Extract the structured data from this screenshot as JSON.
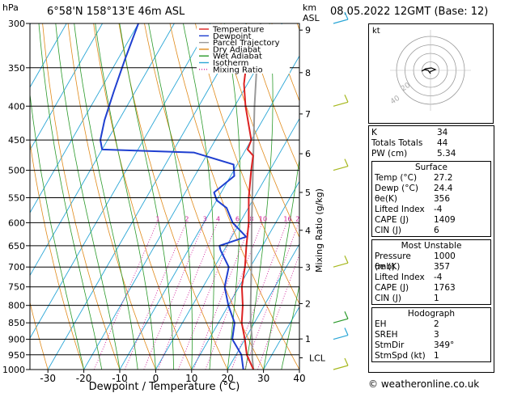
{
  "header": {
    "hpa_label": "hPa",
    "location": "6°58'N  158°13'E  46m  ASL",
    "km_label": "km",
    "asl_label": "ASL",
    "datetime": "08.05.2022  12GMT  (Base: 12)"
  },
  "chart_data": {
    "type": "line",
    "title": "6°58'N  158°13'E  46m  ASL",
    "xlabel": "Dewpoint / Temperature (°C)",
    "ylabel": "hPa",
    "right_axis_label": "Mixing Ratio (g/kg)",
    "xlim": [
      -35,
      40
    ],
    "ylim": [
      1000,
      300
    ],
    "pressure_levels": [
      300,
      350,
      400,
      450,
      500,
      550,
      600,
      650,
      700,
      750,
      800,
      850,
      900,
      950,
      1000
    ],
    "temp_ticks": [
      -30,
      -20,
      -10,
      0,
      10,
      20,
      30,
      40
    ],
    "km_ticks": [
      {
        "km": 1,
        "p": 899
      },
      {
        "km": 2,
        "p": 795
      },
      {
        "km": 3,
        "p": 701
      },
      {
        "km": 4,
        "p": 616
      },
      {
        "km": 5,
        "p": 540
      },
      {
        "km": 6,
        "p": 472
      },
      {
        "km": 7,
        "p": 411
      },
      {
        "km": 8,
        "p": 356
      },
      {
        "km": 9,
        "p": 307
      }
    ],
    "lcl": {
      "label": "LCL",
      "p": 960
    },
    "mixing_ratios": [
      1,
      2,
      3,
      4,
      6,
      8,
      10,
      16,
      20,
      25
    ],
    "legend": [
      {
        "name": "Temperature",
        "color": "#dd2222"
      },
      {
        "name": "Dewpoint",
        "color": "#1f3fd0"
      },
      {
        "name": "Parcel Trajectory",
        "color": "#999999"
      },
      {
        "name": "Dry Adiabat",
        "color": "#e08a1a"
      },
      {
        "name": "Wet Adiabat",
        "color": "#2a9a2a"
      },
      {
        "name": "Isotherm",
        "color": "#2aa6d6"
      },
      {
        "name": "Mixing Ratio",
        "color": "#d0209a"
      }
    ],
    "series": [
      {
        "name": "Temperature",
        "points": [
          [
            1000,
            27.2
          ],
          [
            950,
            23
          ],
          [
            900,
            20
          ],
          [
            850,
            16.5
          ],
          [
            800,
            14
          ],
          [
            750,
            10.8
          ],
          [
            700,
            8.5
          ],
          [
            650,
            5.5
          ],
          [
            600,
            2.5
          ],
          [
            550,
            -1.5
          ],
          [
            500,
            -5.2
          ],
          [
            475,
            -7
          ],
          [
            465,
            -9.5
          ],
          [
            450,
            -10
          ],
          [
            400,
            -17
          ],
          [
            370,
            -21
          ],
          [
            350,
            -23
          ]
        ]
      },
      {
        "name": "Dewpoint",
        "points": [
          [
            1000,
            24.4
          ],
          [
            950,
            21.5
          ],
          [
            900,
            16.5
          ],
          [
            850,
            14.5
          ],
          [
            800,
            10
          ],
          [
            750,
            6
          ],
          [
            700,
            4
          ],
          [
            660,
            -1
          ],
          [
            650,
            -2
          ],
          [
            630,
            4
          ],
          [
            600,
            -2
          ],
          [
            570,
            -6
          ],
          [
            555,
            -10
          ],
          [
            540,
            -12
          ],
          [
            510,
            -9
          ],
          [
            490,
            -11
          ],
          [
            470,
            -24
          ],
          [
            465,
            -50
          ],
          [
            450,
            -52
          ],
          [
            420,
            -54
          ],
          [
            380,
            -56
          ],
          [
            340,
            -58
          ],
          [
            300,
            -60
          ]
        ]
      },
      {
        "name": "Parcel Trajectory",
        "points": [
          [
            1000,
            27.2
          ],
          [
            960,
            25
          ],
          [
            900,
            22
          ],
          [
            850,
            19
          ],
          [
            800,
            16.2
          ],
          [
            700,
            10.3
          ],
          [
            600,
            3.3
          ],
          [
            500,
            -4.7
          ],
          [
            400,
            -14.5
          ],
          [
            350,
            -20
          ],
          [
            300,
            -26
          ]
        ]
      }
    ],
    "hodograph_rings": [
      10,
      20,
      30,
      40
    ]
  },
  "hodograph": {
    "label": "kt",
    "ring_label_1": "20",
    "ring_label_2": "40"
  },
  "indices": {
    "k_label": "K",
    "k_value": "34",
    "tt_label": "Totals Totals",
    "tt_value": "44",
    "pw_label": "PW (cm)",
    "pw_value": "5.34"
  },
  "surface": {
    "title": "Surface",
    "temp_label": "Temp (°C)",
    "temp_value": "27.2",
    "dewp_label": "Dewp (°C)",
    "dewp_value": "24.4",
    "theta_label": "θe(K)",
    "theta_value": "356",
    "li_label": "Lifted Index",
    "li_value": "-4",
    "cape_label": "CAPE (J)",
    "cape_value": "1409",
    "cin_label": "CIN (J)",
    "cin_value": "6"
  },
  "most_unstable": {
    "title": "Most Unstable",
    "pressure_label": "Pressure (mb)",
    "pressure_value": "1000",
    "theta_label": "θe (K)",
    "theta_value": "357",
    "li_label": "Lifted Index",
    "li_value": "-4",
    "cape_label": "CAPE (J)",
    "cape_value": "1763",
    "cin_label": "CIN (J)",
    "cin_value": "1"
  },
  "hodograph_box": {
    "title": "Hodograph",
    "eh_label": "EH",
    "eh_value": "2",
    "sreh_label": "SREH",
    "sreh_value": "3",
    "dir_label": "StmDir",
    "dir_value": "349°",
    "spd_label": "StmSpd (kt)",
    "spd_value": "1"
  },
  "footer": {
    "credit": "© weatheronline.co.uk"
  }
}
